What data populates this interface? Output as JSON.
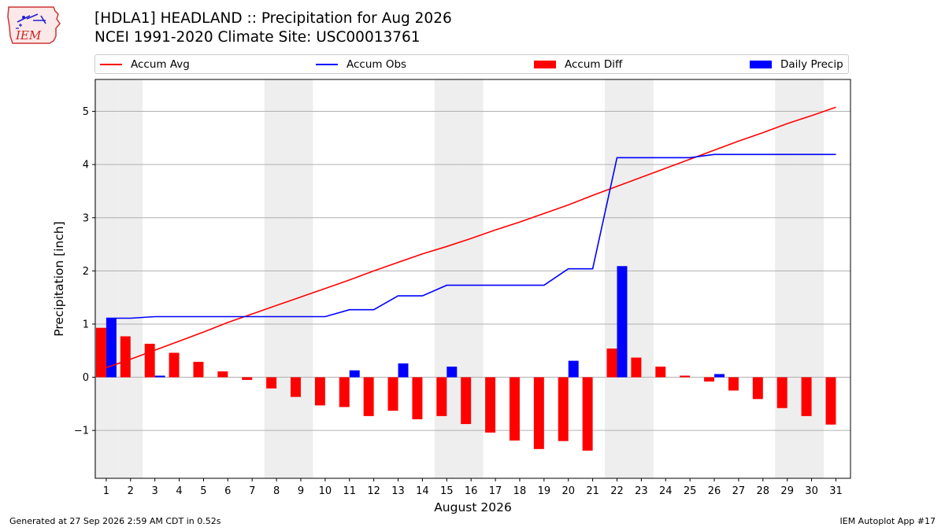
{
  "header": {
    "title_line1": "[HDLA1] HEADLAND :: Precipitation for Aug 2026",
    "title_line2": "NCEI 1991-2020 Climate Site: USC00013761"
  },
  "logo": {
    "text": "IEM",
    "icon": "iem-logo"
  },
  "legend": [
    {
      "label": "Accum Avg",
      "kind": "line",
      "color": "#ff0000"
    },
    {
      "label": "Accum Obs",
      "kind": "line",
      "color": "#0000ff"
    },
    {
      "label": "Accum Diff",
      "kind": "patch",
      "color": "#ff0000"
    },
    {
      "label": "Daily Precip",
      "kind": "patch",
      "color": "#0000ff"
    }
  ],
  "footer": {
    "generated": "Generated at 27 Sep 2026 2:59 AM CDT in 0.52s",
    "app": "IEM Autoplot App #17"
  },
  "chart_data": {
    "type": "bar",
    "xlabel": "August 2026",
    "ylabel": "Precipitation [inch]",
    "ylim": [
      -1.9,
      5.6
    ],
    "yticks": [
      -1,
      0,
      1,
      2,
      3,
      4,
      5
    ],
    "ytick_labels": [
      "−1",
      "0",
      "1",
      "2",
      "3",
      "4",
      "5"
    ],
    "grid": true,
    "weekend_days": [
      1,
      2,
      8,
      9,
      15,
      16,
      22,
      23,
      29,
      30
    ],
    "days": [
      1,
      2,
      3,
      4,
      5,
      6,
      7,
      8,
      9,
      10,
      11,
      12,
      13,
      14,
      15,
      16,
      17,
      18,
      19,
      20,
      21,
      22,
      23,
      24,
      25,
      26,
      27,
      28,
      29,
      30,
      31
    ],
    "series": [
      {
        "name": "Accum Avg",
        "type": "line",
        "color": "#ff0000",
        "values": [
          0.18,
          0.34,
          0.51,
          0.68,
          0.85,
          1.03,
          1.19,
          1.35,
          1.51,
          1.67,
          1.83,
          2.0,
          2.16,
          2.32,
          2.46,
          2.61,
          2.77,
          2.92,
          3.08,
          3.24,
          3.42,
          3.59,
          3.76,
          3.93,
          4.1,
          4.27,
          4.44,
          4.6,
          4.77,
          4.92,
          5.08
        ]
      },
      {
        "name": "Accum Obs",
        "type": "line",
        "color": "#0000ff",
        "values": [
          1.11,
          1.11,
          1.14,
          1.14,
          1.14,
          1.14,
          1.14,
          1.14,
          1.14,
          1.14,
          1.27,
          1.27,
          1.53,
          1.53,
          1.73,
          1.73,
          1.73,
          1.73,
          1.73,
          2.04,
          2.04,
          4.13,
          4.13,
          4.13,
          4.13,
          4.19,
          4.19,
          4.19,
          4.19,
          4.19,
          4.19
        ]
      },
      {
        "name": "Accum Diff",
        "type": "bar",
        "color": "#ff0000",
        "values": [
          0.93,
          0.77,
          0.63,
          0.46,
          0.29,
          0.11,
          -0.05,
          -0.21,
          -0.37,
          -0.53,
          -0.56,
          -0.73,
          -0.63,
          -0.79,
          -0.73,
          -0.88,
          -1.04,
          -1.19,
          -1.35,
          -1.2,
          -1.38,
          0.54,
          0.37,
          0.2,
          0.03,
          -0.08,
          -0.25,
          -0.41,
          -0.58,
          -0.73,
          -0.89
        ]
      },
      {
        "name": "Daily Precip",
        "type": "bar",
        "color": "#0000ff",
        "values": [
          1.11,
          0,
          0.03,
          0,
          0,
          0,
          0,
          0,
          0,
          0,
          0.13,
          0,
          0.26,
          0,
          0.2,
          0,
          0,
          0,
          0,
          0.31,
          0,
          2.09,
          0,
          0,
          0,
          0.06,
          0,
          0,
          0,
          0,
          0
        ]
      }
    ]
  }
}
